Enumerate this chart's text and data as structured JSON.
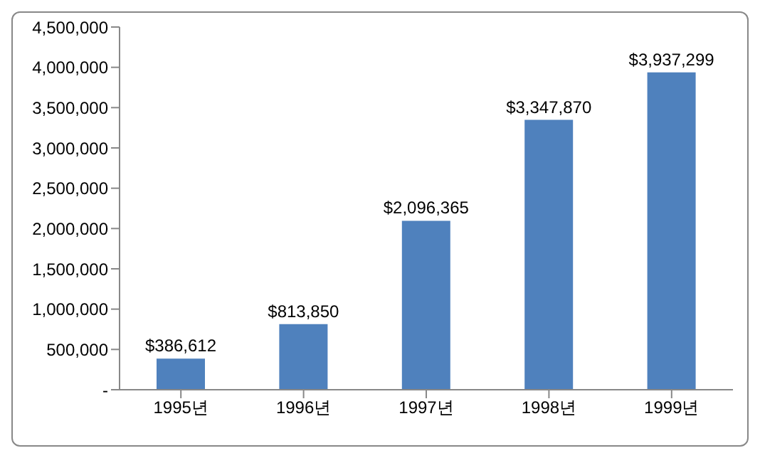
{
  "chart_data": {
    "type": "bar",
    "categories": [
      "1995년",
      "1996년",
      "1997년",
      "1998년",
      "1999년"
    ],
    "values": [
      386612,
      813850,
      2096365,
      3347870,
      3937299
    ],
    "value_labels": [
      "$386,612",
      "$813,850",
      "$2,096,365",
      "$3,347,870",
      "$3,937,299"
    ],
    "color": "#4f81bd",
    "ylim": [
      0,
      4500000
    ],
    "yticks": [
      {
        "value": 0,
        "label": "-"
      },
      {
        "value": 500000,
        "label": "500,000"
      },
      {
        "value": 1000000,
        "label": "1,000,000"
      },
      {
        "value": 1500000,
        "label": "1,500,000"
      },
      {
        "value": 2000000,
        "label": "2,000,000"
      },
      {
        "value": 2500000,
        "label": "2,500,000"
      },
      {
        "value": 3000000,
        "label": "3,000,000"
      },
      {
        "value": 3500000,
        "label": "3,500,000"
      },
      {
        "value": 4000000,
        "label": "4,000,000"
      },
      {
        "value": 4500000,
        "label": "4,500,000"
      }
    ],
    "grid": false,
    "legend": false
  }
}
